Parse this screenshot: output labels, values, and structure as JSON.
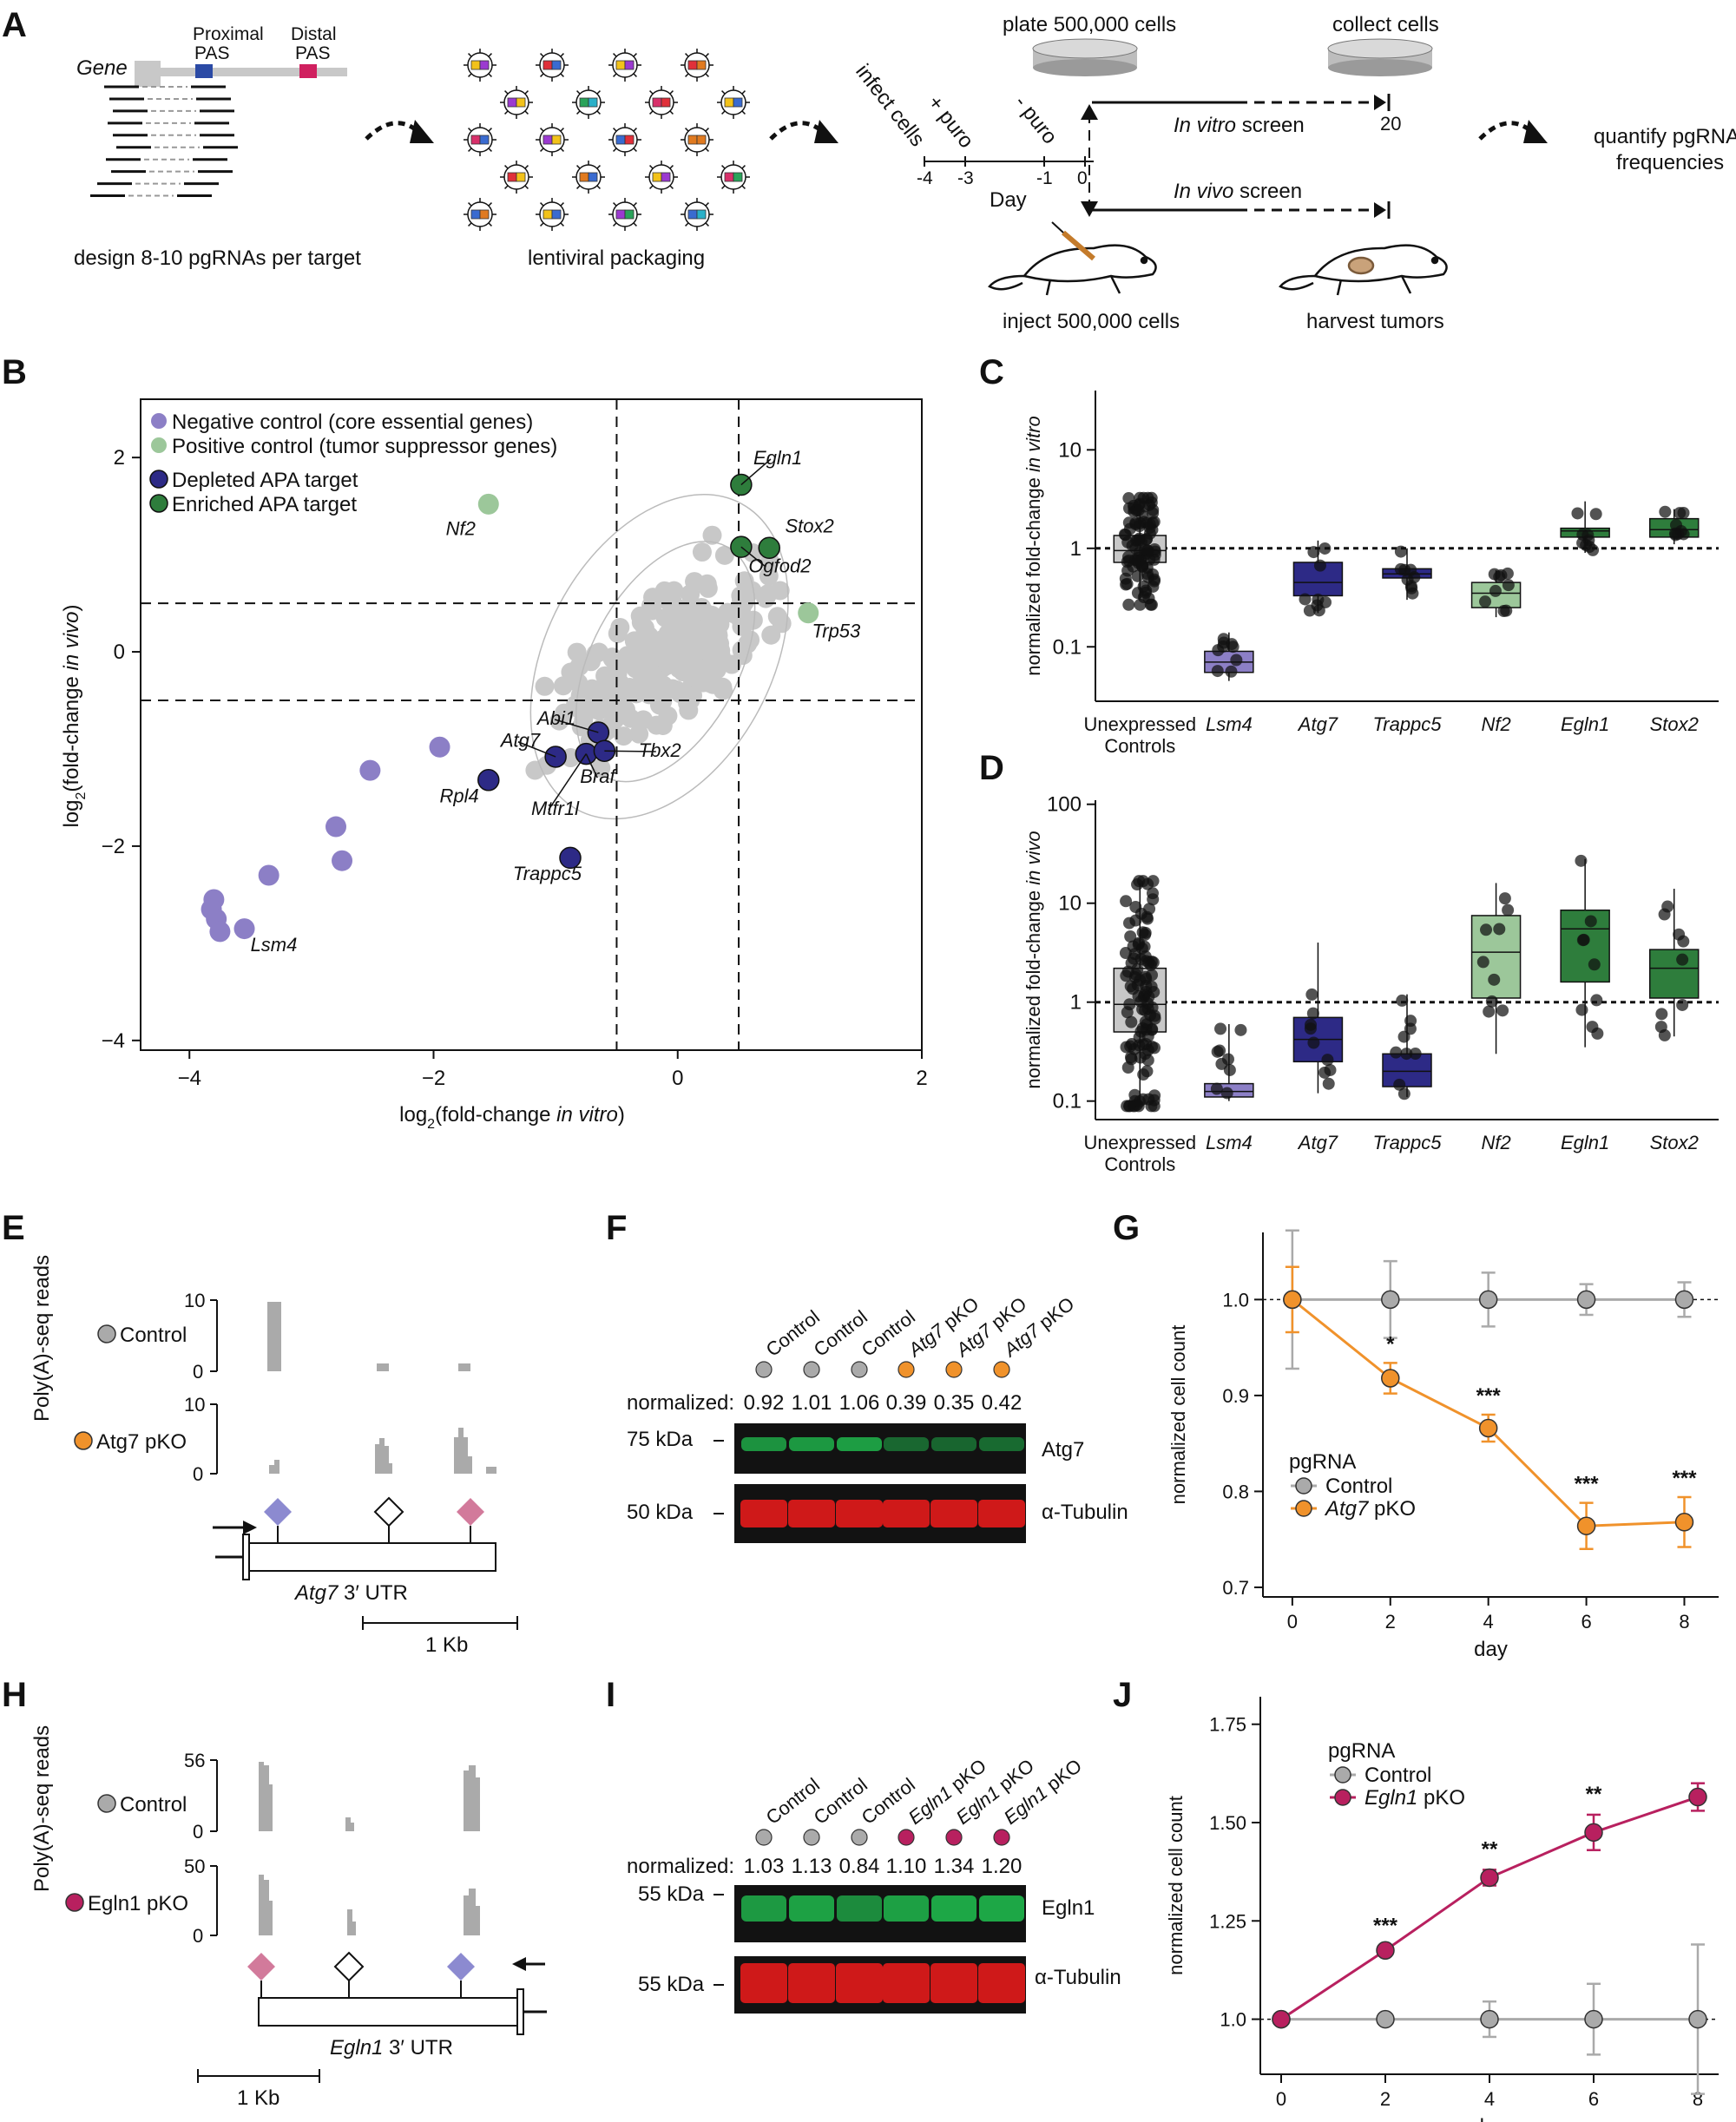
{
  "panels": {
    "A": {
      "label": "A",
      "gene_label": "Gene",
      "proximal_pas": [
        "Proximal",
        "PAS"
      ],
      "distal_pas": [
        "Distal",
        "PAS"
      ],
      "design_caption": "design 8-10 pgRNAs per target",
      "packaging_caption": "lentiviral packaging",
      "plate_caption": "plate 500,000 cells",
      "collect_caption": "collect cells",
      "infect_label": "infect cells",
      "puro_plus": "+ puro",
      "puro_minus": "- puro",
      "day_ticks": [
        "-4",
        "-3",
        "-1",
        "0"
      ],
      "day_label": "Day",
      "invitro_screen": [
        "In vitro",
        " screen"
      ],
      "invivo_screen": [
        "In vivo",
        " screen"
      ],
      "end_day": "20",
      "inject_caption": "inject 500,000 cells",
      "harvest_caption": "harvest tumors",
      "quantify_caption": [
        "quantify pgRNA",
        "frequencies"
      ]
    },
    "B": {
      "label": "B",
      "legend": [
        "Negative control (core essential genes)",
        "Positive control (tumor suppressor genes)",
        "Depleted APA target",
        "Enriched APA target"
      ],
      "legend_colors": [
        "#8c7fc6",
        "#9cc79a",
        "#2d2a86",
        "#2e7d3c"
      ]
    },
    "C": {
      "label": "C"
    },
    "D": {
      "label": "D"
    },
    "E": {
      "label": "E",
      "ylabel": "Poly(A)-seq reads",
      "tracks": [
        {
          "name": "Control",
          "color": "#aaaaaa",
          "ymax": "10",
          "ymin": "0"
        },
        {
          "name": "Atg7 pKO",
          "color": "#f0922b",
          "ymax": "10",
          "ymin": "0"
        }
      ],
      "utr": [
        "Atg7",
        " 3′ UTR"
      ],
      "scale": "1 Kb"
    },
    "F": {
      "label": "F",
      "lanes": [
        "Control",
        "Control",
        "Control",
        "Atg7 pKO",
        "Atg7 pKO",
        "Atg7 pKO"
      ],
      "lane_colors": [
        "#aaaaaa",
        "#aaaaaa",
        "#aaaaaa",
        "#f0922b",
        "#f0922b",
        "#f0922b"
      ],
      "normalized_label": "normalized:",
      "normalized": [
        "0.92",
        "1.01",
        "1.06",
        "0.39",
        "0.35",
        "0.42"
      ],
      "band1_kda": "75 kDa",
      "band1_name": "Atg7",
      "band2_kda": "50 kDa",
      "band2_name": "α-Tubulin"
    },
    "G": {
      "label": "G"
    },
    "H": {
      "label": "H",
      "ylabel": "Poly(A)-seq reads",
      "tracks": [
        {
          "name": "Control",
          "color": "#aaaaaa",
          "ymax": "56",
          "ymin": "0"
        },
        {
          "name": "Egln1 pKO",
          "color": "#b8205f",
          "ymax": "50",
          "ymin": "0"
        }
      ],
      "utr": [
        "Egln1",
        " 3′ UTR"
      ],
      "scale": "1 Kb"
    },
    "I": {
      "label": "I",
      "lanes": [
        "Control",
        "Control",
        "Control",
        "Egln1 pKO",
        "Egln1 pKO",
        "Egln1 pKO"
      ],
      "lane_colors": [
        "#aaaaaa",
        "#aaaaaa",
        "#aaaaaa",
        "#b8205f",
        "#b8205f",
        "#b8205f"
      ],
      "normalized_label": "normalized:",
      "normalized": [
        "1.03",
        "1.13",
        "0.84",
        "1.10",
        "1.34",
        "1.20"
      ],
      "band1_kda": "55 kDa",
      "band1_name": "Egln1",
      "band2_kda": "55 kDa",
      "band2_name": "α-Tubulin"
    },
    "J": {
      "label": "J"
    }
  },
  "chart_data": [
    {
      "id": "B",
      "type": "scatter",
      "xlabel": [
        "log",
        "2",
        "(fold-change ",
        "in vitro",
        ")"
      ],
      "ylabel": [
        "log",
        "2",
        "(fold-change ",
        "in vivo",
        ")"
      ],
      "xlim": [
        -4.4,
        2.0
      ],
      "ylim": [
        -4.1,
        2.6
      ],
      "xticks": [
        -4,
        -2,
        0,
        2
      ],
      "xtick_labels": [
        "−4",
        "−2",
        "0",
        "2"
      ],
      "yticks": [
        -4,
        -2,
        0,
        2
      ],
      "ytick_labels": [
        "−4",
        "−2",
        "0",
        "2"
      ],
      "thresholds_x": [
        -0.5,
        0.5
      ],
      "thresholds_y": [
        -0.5,
        0.5
      ],
      "background_color": "#c8c8c8",
      "series": [
        {
          "name": "Negative control (core essential genes)",
          "color": "#8c7fc6",
          "points": [
            [
              -3.8,
              -2.55
            ],
            [
              -3.82,
              -2.65
            ],
            [
              -3.78,
              -2.75
            ],
            [
              -3.75,
              -2.88
            ],
            [
              -3.55,
              -2.85
            ],
            [
              -3.35,
              -2.3
            ],
            [
              -2.8,
              -1.8
            ],
            [
              -2.75,
              -2.15
            ],
            [
              -2.52,
              -1.22
            ],
            [
              -1.95,
              -0.98
            ]
          ]
        },
        {
          "name": "Positive control (tumor suppressor genes)",
          "color": "#9cc79a",
          "points": [
            [
              -1.55,
              1.52
            ],
            [
              1.07,
              0.4
            ]
          ]
        },
        {
          "name": "Depleted APA target",
          "color": "#2d2a86",
          "points": [
            [
              -1.55,
              -1.32
            ],
            [
              -1.0,
              -1.08
            ],
            [
              -0.75,
              -1.05
            ],
            [
              -0.65,
              -0.83
            ],
            [
              -0.6,
              -1.02
            ],
            [
              -0.88,
              -2.12
            ]
          ]
        },
        {
          "name": "Enriched APA target",
          "color": "#2e7d3c",
          "points": [
            [
              0.52,
              1.72
            ],
            [
              0.75,
              1.07
            ],
            [
              0.52,
              1.08
            ]
          ]
        }
      ],
      "gene_labels": [
        "Egln1",
        "Stox2",
        "Ogfod2",
        "Trp53",
        "Nf2",
        "Abi1",
        "Atg7",
        "Tbx2",
        "Braf",
        "Rpl4",
        "Mtfr1l",
        "Trappc5",
        "Lsm4"
      ]
    },
    {
      "id": "C",
      "type": "box",
      "ylabel": [
        "normalized fold-change ",
        "in vitro"
      ],
      "yscale": "log",
      "ylim": [
        0.028,
        40
      ],
      "yticks": [
        0.1,
        1,
        10
      ],
      "ytick_labels": [
        "0.1",
        "1",
        "10"
      ],
      "categories": [
        "Unexpressed|Controls",
        "Lsm4",
        "Atg7",
        "Trappc5",
        "Nf2",
        "Egln1",
        "Stox2"
      ],
      "category_italic": [
        false,
        true,
        true,
        true,
        true,
        true,
        true
      ],
      "colors": [
        "#c8c8c8",
        "#8c7fc6",
        "#2d2a86",
        "#2d2a86",
        "#9cc79a",
        "#2e7d3c",
        "#2e7d3c"
      ],
      "boxes": [
        {
          "q1": 0.72,
          "med": 0.95,
          "q3": 1.35,
          "lo": 0.3,
          "hi": 3.1
        },
        {
          "q1": 0.055,
          "med": 0.07,
          "q3": 0.09,
          "lo": 0.045,
          "hi": 0.14
        },
        {
          "q1": 0.33,
          "med": 0.45,
          "q3": 0.72,
          "lo": 0.22,
          "hi": 1.2
        },
        {
          "q1": 0.5,
          "med": 0.55,
          "q3": 0.62,
          "lo": 0.3,
          "hi": 1.0
        },
        {
          "q1": 0.25,
          "med": 0.35,
          "q3": 0.45,
          "lo": 0.2,
          "hi": 0.6
        },
        {
          "q1": 1.3,
          "med": 1.5,
          "q3": 1.6,
          "lo": 0.9,
          "hi": 3.0
        },
        {
          "q1": 1.3,
          "med": 1.55,
          "q3": 2.0,
          "lo": 1.1,
          "hi": 2.5
        }
      ]
    },
    {
      "id": "D",
      "type": "box",
      "ylabel": [
        "normalized fold-change ",
        "in vivo"
      ],
      "yscale": "log",
      "ylim": [
        0.065,
        110
      ],
      "yticks": [
        0.1,
        1,
        10,
        100
      ],
      "ytick_labels": [
        "0.1",
        "1",
        "10",
        "100"
      ],
      "categories": [
        "Unexpressed|Controls",
        "Lsm4",
        "Atg7",
        "Trappc5",
        "Nf2",
        "Egln1",
        "Stox2"
      ],
      "category_italic": [
        false,
        true,
        true,
        true,
        true,
        true,
        true
      ],
      "colors": [
        "#c8c8c8",
        "#8c7fc6",
        "#2d2a86",
        "#2d2a86",
        "#9cc79a",
        "#2e7d3c",
        "#2e7d3c"
      ],
      "boxes": [
        {
          "q1": 0.5,
          "med": 0.95,
          "q3": 2.2,
          "lo": 0.1,
          "hi": 16
        },
        {
          "q1": 0.11,
          "med": 0.125,
          "q3": 0.15,
          "lo": 0.1,
          "hi": 0.6
        },
        {
          "q1": 0.25,
          "med": 0.42,
          "q3": 0.7,
          "lo": 0.12,
          "hi": 4.0
        },
        {
          "q1": 0.14,
          "med": 0.2,
          "q3": 0.3,
          "lo": 0.11,
          "hi": 1.2
        },
        {
          "q1": 1.1,
          "med": 3.2,
          "q3": 7.5,
          "lo": 0.3,
          "hi": 16
        },
        {
          "q1": 1.6,
          "med": 5.5,
          "q3": 8.5,
          "lo": 0.35,
          "hi": 28
        },
        {
          "q1": 1.1,
          "med": 2.2,
          "q3": 3.4,
          "lo": 0.45,
          "hi": 14
        }
      ]
    },
    {
      "id": "G",
      "type": "line",
      "xlabel": "day",
      "ylabel": "normalized cell count",
      "xlim": [
        -0.6,
        8.7
      ],
      "ylim": [
        0.69,
        1.07
      ],
      "xticks": [
        0,
        2,
        4,
        6,
        8
      ],
      "xtick_labels": [
        "0",
        "2",
        "4",
        "6",
        "8"
      ],
      "yticks": [
        0.7,
        0.8,
        0.9,
        1.0
      ],
      "ytick_labels": [
        "0.7",
        "0.8",
        "0.9",
        "1.0"
      ],
      "legend_title": "pgRNA",
      "series": [
        {
          "name": "Control",
          "name_parts": [
            "",
            "Control"
          ],
          "color": "#aaaaaa",
          "x": [
            0,
            2,
            4,
            6,
            8
          ],
          "y": [
            1.0,
            1.0,
            1.0,
            1.0,
            1.0
          ],
          "err": [
            0.072,
            0.04,
            0.028,
            0.016,
            0.018
          ]
        },
        {
          "name": "Atg7 pKO",
          "name_parts": [
            "Atg7",
            " pKO"
          ],
          "color": "#f0922b",
          "x": [
            0,
            2,
            4,
            6,
            8
          ],
          "y": [
            1.0,
            0.918,
            0.866,
            0.764,
            0.768
          ],
          "err": [
            0.034,
            0.016,
            0.014,
            0.024,
            0.026
          ]
        }
      ],
      "significance": [
        "",
        "*",
        "***",
        "***",
        "***"
      ]
    },
    {
      "id": "J",
      "type": "line",
      "xlabel": "day",
      "ylabel": "normalized cell count",
      "xlim": [
        -0.4,
        8.4
      ],
      "ylim": [
        0.86,
        1.82
      ],
      "xticks": [
        0,
        2,
        4,
        6,
        8
      ],
      "xtick_labels": [
        "0",
        "2",
        "4",
        "6",
        "8"
      ],
      "yticks": [
        1.0,
        1.25,
        1.5,
        1.75
      ],
      "ytick_labels": [
        "1.0",
        "1.25",
        "1.50",
        "1.75"
      ],
      "legend_title": "pgRNA",
      "series": [
        {
          "name": "Control",
          "name_parts": [
            "",
            "Control"
          ],
          "color": "#aaaaaa",
          "x": [
            0,
            2,
            4,
            6,
            8
          ],
          "y": [
            1.0,
            1.0,
            1.0,
            1.0,
            1.0
          ],
          "err": [
            0.0,
            0.0,
            0.045,
            0.09,
            0.19
          ]
        },
        {
          "name": "Egln1 pKO",
          "name_parts": [
            "Egln1",
            " pKO"
          ],
          "color": "#b8205f",
          "x": [
            0,
            2,
            4,
            6,
            8
          ],
          "y": [
            1.0,
            1.175,
            1.36,
            1.475,
            1.565
          ],
          "err": [
            0.0,
            0.01,
            0.02,
            0.045,
            0.035
          ]
        }
      ],
      "significance": [
        "",
        "***",
        "**",
        "**",
        ""
      ]
    }
  ]
}
